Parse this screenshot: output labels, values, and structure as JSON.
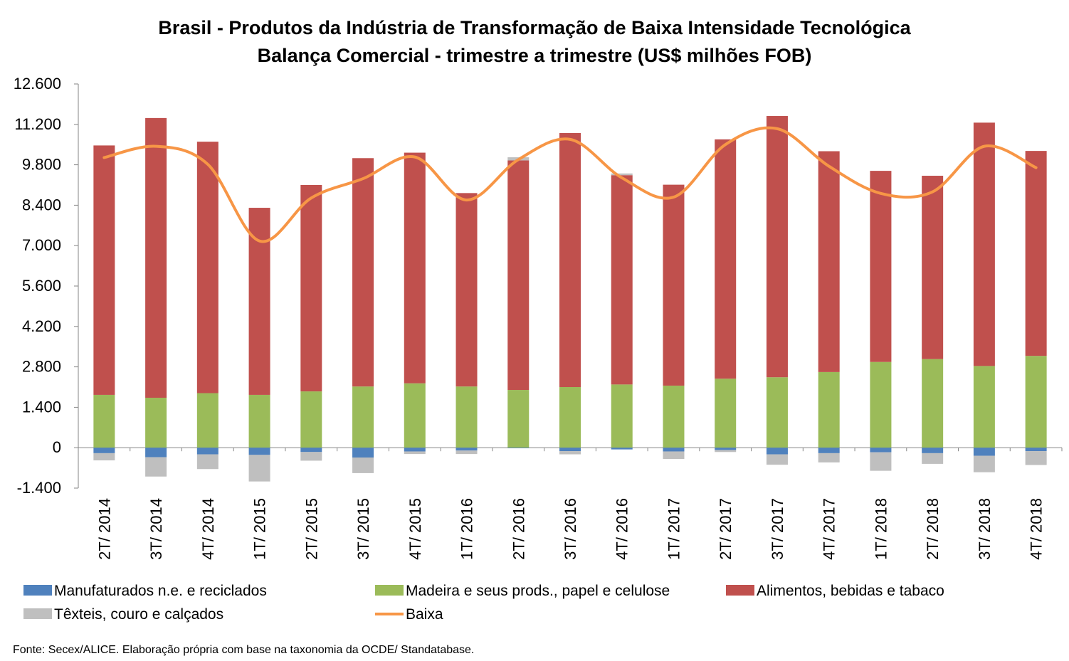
{
  "chart_data": {
    "type": "bar",
    "stacked": true,
    "title": "Brasil - Produtos da Indústria de Transformação de Baixa Intensidade Tecnológica",
    "subtitle": "Balança Comercial - trimestre a trimestre (US$ milhões FOB)",
    "categories": [
      "2T/ 2014",
      "3T/ 2014",
      "4T/ 2014",
      "1T/ 2015",
      "2T/ 2015",
      "3T/ 2015",
      "4T/ 2015",
      "1T/ 2016",
      "2T/ 2016",
      "3T/ 2016",
      "4T/ 2016",
      "1T/ 2017",
      "2T/ 2017",
      "3T/ 2017",
      "4T/ 2017",
      "1T/ 2018",
      "2T/ 2018",
      "3T/ 2018",
      "4T/ 2018"
    ],
    "ylim": [
      -1400,
      12600
    ],
    "ytick_values": [
      -1400,
      0,
      1400,
      2800,
      4200,
      5600,
      7000,
      8400,
      9800,
      11200,
      12600
    ],
    "ytick_labels": [
      "-1.400",
      "0",
      "1.400",
      "2.800",
      "4.200",
      "5.600",
      "7.000",
      "8.400",
      "9.800",
      "11.200",
      "12.600"
    ],
    "grid": false,
    "legend_position": "bottom",
    "series": [
      {
        "name": "Manufaturados n.e. e reciclados",
        "kind": "bar",
        "color": "#4f81bd",
        "values": [
          -190,
          -330,
          -230,
          -250,
          -150,
          -340,
          -130,
          -100,
          -20,
          -120,
          -60,
          -130,
          -80,
          -230,
          -190,
          -160,
          -190,
          -280,
          -120
        ]
      },
      {
        "name": "Madeira e seus prods., papel e celulose",
        "kind": "bar",
        "color": "#9bbb59",
        "values": [
          1830,
          1730,
          1890,
          1830,
          1950,
          2120,
          2230,
          2120,
          2000,
          2100,
          2190,
          2150,
          2390,
          2440,
          2620,
          2970,
          3070,
          2830,
          3180
        ]
      },
      {
        "name": "Alimentos, bebidas e tabaco",
        "kind": "bar",
        "color": "#c0504d",
        "values": [
          8640,
          9690,
          8710,
          6480,
          7150,
          7910,
          7990,
          6700,
          7950,
          8800,
          7250,
          6960,
          8290,
          9050,
          7650,
          6620,
          6350,
          8430,
          7100
        ]
      },
      {
        "name": "Têxteis, couro e calçados",
        "kind": "bar",
        "color": "#bfbfbf",
        "values": [
          -250,
          -670,
          -510,
          -920,
          -300,
          -540,
          -90,
          -120,
          110,
          -110,
          60,
          -260,
          -70,
          -360,
          -320,
          -640,
          -370,
          -570,
          -480
        ]
      },
      {
        "name": "Baixa",
        "kind": "line",
        "color": "#f79646",
        "values": [
          10050,
          10440,
          9820,
          7160,
          8650,
          9320,
          10070,
          8580,
          9980,
          10680,
          9350,
          8680,
          10500,
          11050,
          9750,
          8810,
          8860,
          10440,
          9700
        ]
      }
    ]
  },
  "legend": {
    "items": [
      {
        "label": "Manufaturados n.e. e reciclados",
        "color": "#4f81bd",
        "kind": "bar"
      },
      {
        "label": "Madeira e seus prods., papel e celulose",
        "color": "#9bbb59",
        "kind": "bar"
      },
      {
        "label": "Alimentos, bebidas e tabaco",
        "color": "#c0504d",
        "kind": "bar"
      },
      {
        "label": "Têxteis, couro e calçados",
        "color": "#bfbfbf",
        "kind": "bar"
      },
      {
        "label": "Baixa",
        "color": "#f79646",
        "kind": "line"
      }
    ]
  },
  "source": "Fonte: Secex/ALICE. Elaboração própria com base na taxonomia da OCDE/ Standatabase."
}
